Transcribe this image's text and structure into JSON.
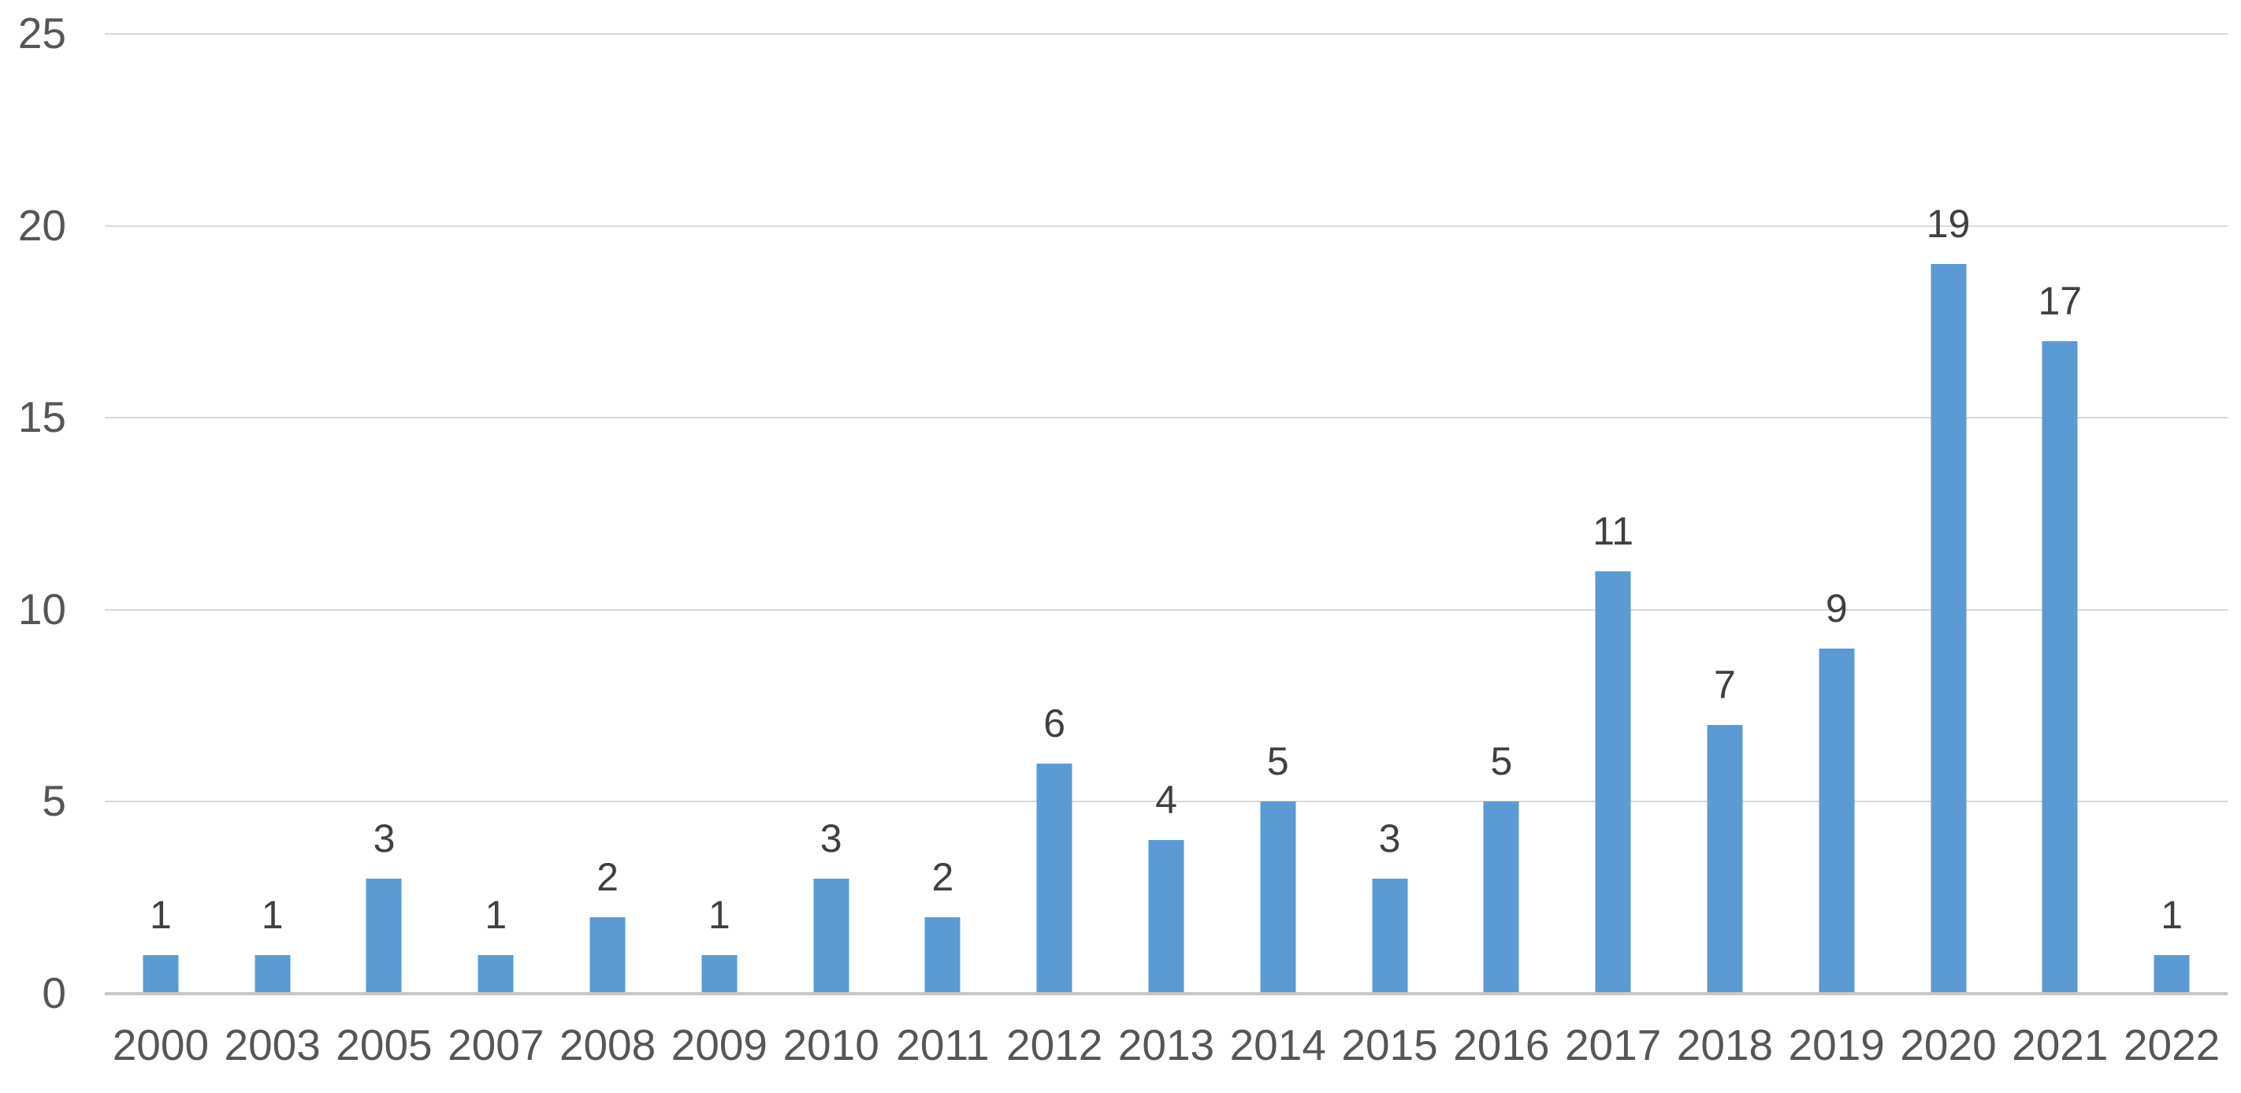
{
  "chart_data": {
    "type": "bar",
    "title": "",
    "xlabel": "",
    "ylabel": "",
    "categories": [
      "2000",
      "2003",
      "2005",
      "2007",
      "2008",
      "2009",
      "2010",
      "2011",
      "2012",
      "2013",
      "2014",
      "2015",
      "2016",
      "2017",
      "2018",
      "2019",
      "2020",
      "2021",
      "2022"
    ],
    "values": [
      1,
      1,
      3,
      1,
      2,
      1,
      3,
      2,
      6,
      4,
      5,
      3,
      5,
      11,
      7,
      9,
      19,
      17,
      1
    ],
    "data_labels_shown": true,
    "ylim": [
      0,
      25
    ],
    "yticks": [
      0,
      5,
      10,
      15,
      20,
      25
    ],
    "grid": true,
    "legend_position": "none",
    "colors": {
      "bar": "#5B9BD5",
      "gridline": "#D9D9D9",
      "axis_line": "#C6C6C6",
      "data_label": "#404040",
      "tick_label": "#565656"
    }
  }
}
